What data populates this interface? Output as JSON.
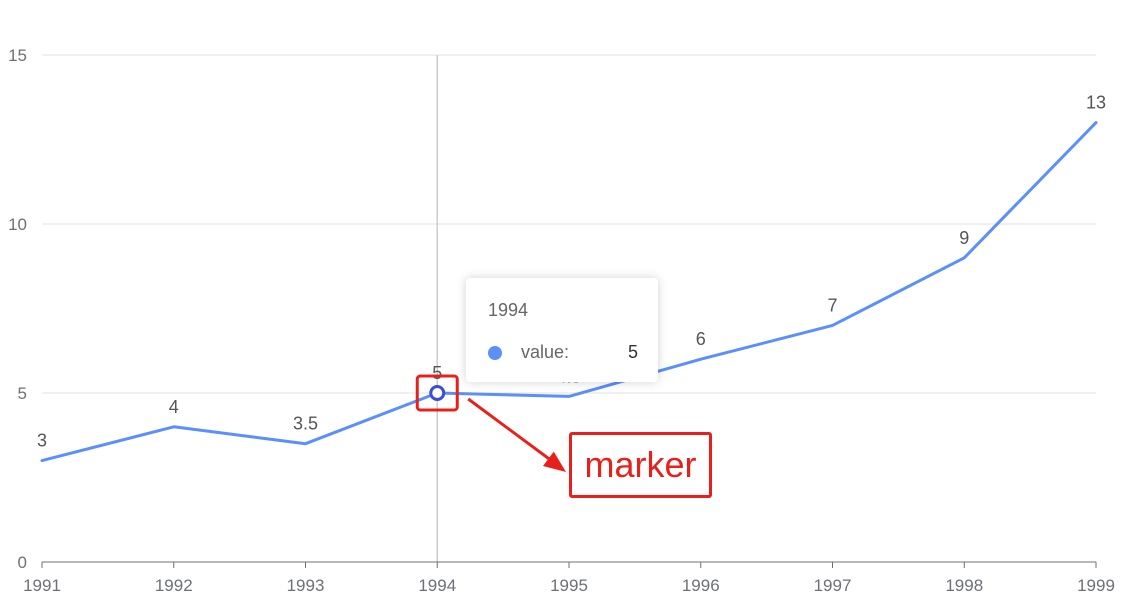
{
  "chart_data": {
    "type": "line",
    "categories": [
      "1991",
      "1992",
      "1993",
      "1994",
      "1995",
      "1996",
      "1997",
      "1998",
      "1999"
    ],
    "series": [
      {
        "name": "value",
        "values": [
          3,
          4,
          3.5,
          5,
          4.9,
          6,
          7,
          9,
          13
        ]
      }
    ],
    "data_labels": [
      "3",
      "4",
      "3.5",
      "5",
      "4.9",
      "6",
      "7",
      "9",
      "13"
    ],
    "ylim": [
      0,
      15
    ],
    "y_ticks": [
      "0",
      "5",
      "10",
      "15"
    ],
    "grid": true,
    "highlight_category_index": 3
  },
  "tooltip": {
    "title": "1994",
    "series_name": "value:",
    "value": "5"
  },
  "annotation": {
    "label": "marker"
  },
  "colors": {
    "series": "#5b8ff9",
    "grid": "#e0e0e0",
    "axis": "#6e7079",
    "crosshair": "#cccccc",
    "marker_ring": "#3b4fd6",
    "annotation": "#e8201c"
  }
}
